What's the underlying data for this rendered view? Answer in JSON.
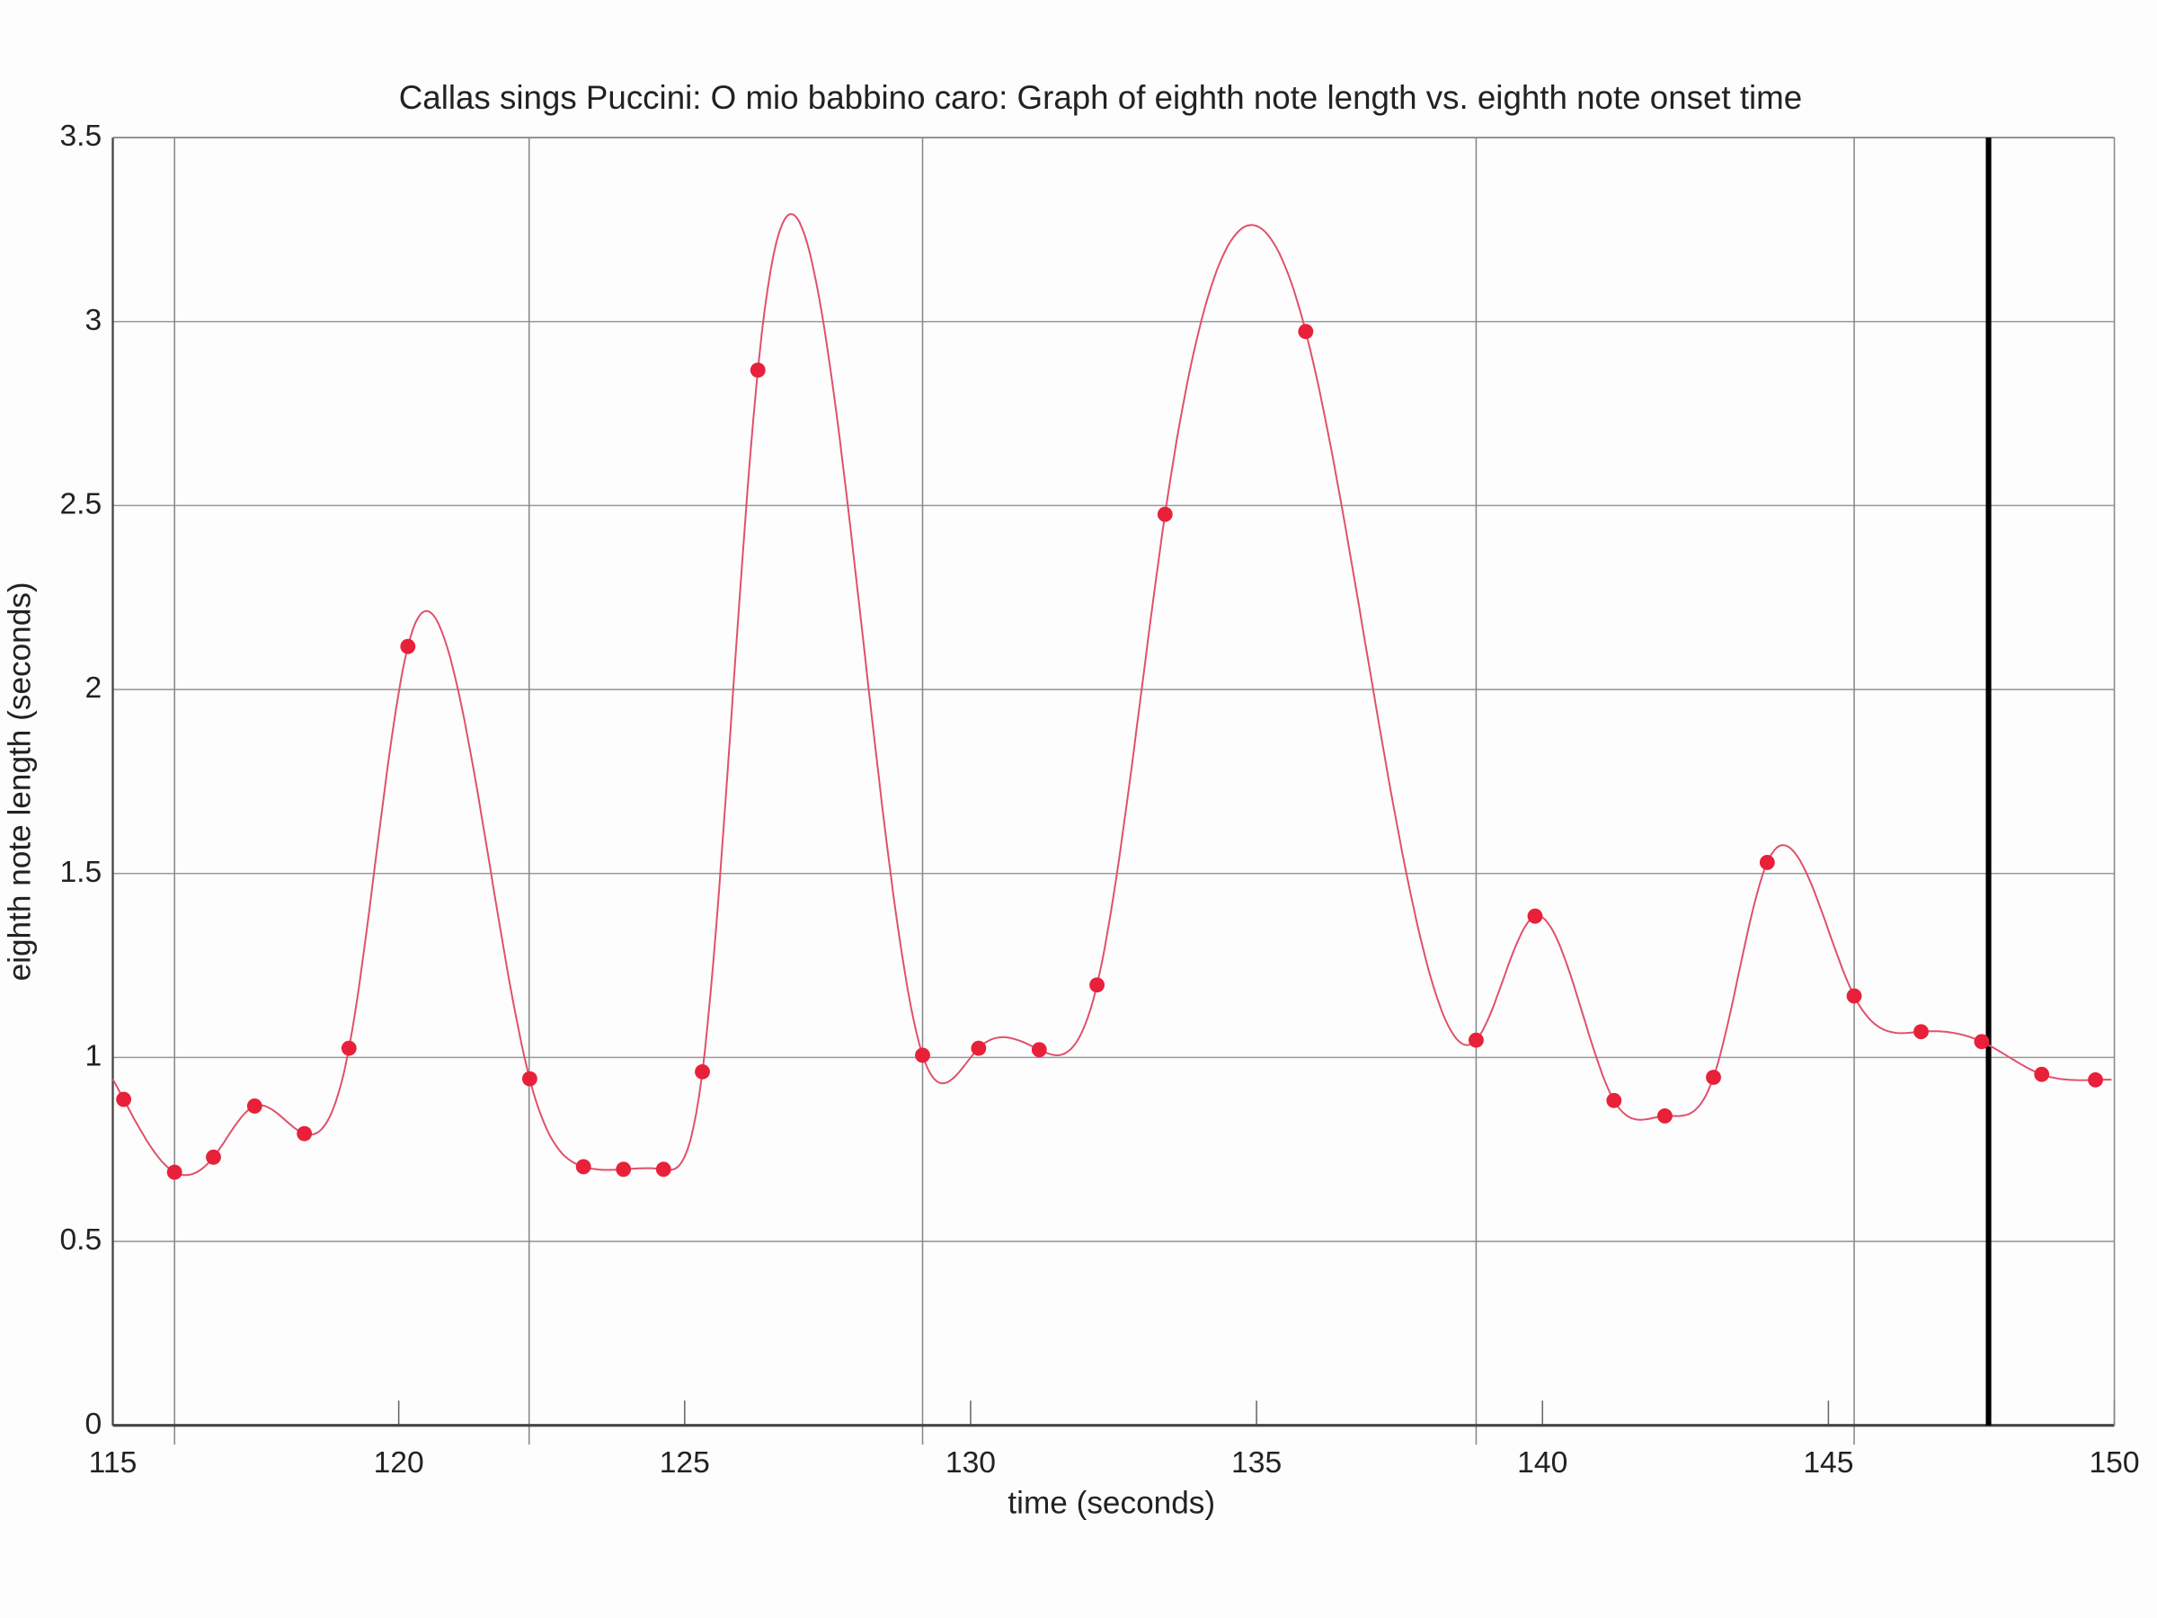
{
  "chart_data": {
    "type": "line",
    "title": "Callas sings Puccini: O mio babbino caro: Graph of eighth note length vs. eighth note onset time",
    "xlabel": "time (seconds)",
    "ylabel": "eighth note length (seconds)",
    "xlim": [
      115,
      150
    ],
    "ylim": [
      0,
      3.5
    ],
    "xticks": [
      115,
      120,
      125,
      130,
      135,
      140,
      145,
      150
    ],
    "xtick_labels": [
      "115",
      "120",
      "125",
      "130",
      "135",
      "140",
      "145",
      "150"
    ],
    "yticks": [
      0,
      0.5,
      1,
      1.5,
      2,
      2.5,
      3,
      3.5
    ],
    "ytick_labels": [
      "0",
      "0.5",
      "1",
      "1.5",
      "2",
      "2.5",
      "3",
      "3.5"
    ],
    "grid": true,
    "vertical_gridlines_at": [
      116.08,
      122.28,
      129.16,
      138.84,
      145.45
    ],
    "marker_line_x": 147.8,
    "point_color": "#e8203a",
    "curve_color": "#e0506a",
    "marker_line_color": "#000000",
    "points": {
      "x": [
        115.19,
        116.08,
        116.76,
        117.48,
        118.35,
        119.13,
        120.16,
        122.29,
        123.23,
        123.93,
        124.63,
        125.31,
        126.28,
        129.16,
        130.14,
        131.2,
        132.21,
        133.4,
        135.86,
        138.84,
        139.87,
        141.25,
        142.14,
        142.99,
        143.93,
        145.45,
        146.62,
        147.68,
        148.73,
        149.67
      ],
      "y": [
        0.886,
        0.688,
        0.729,
        0.868,
        0.793,
        1.025,
        2.117,
        0.942,
        0.703,
        0.696,
        0.696,
        0.961,
        2.868,
        1.006,
        1.025,
        1.021,
        1.197,
        2.476,
        2.973,
        1.047,
        1.384,
        0.883,
        0.841,
        0.946,
        1.53,
        1.167,
        1.07,
        1.043,
        0.954,
        0.939
      ]
    }
  }
}
